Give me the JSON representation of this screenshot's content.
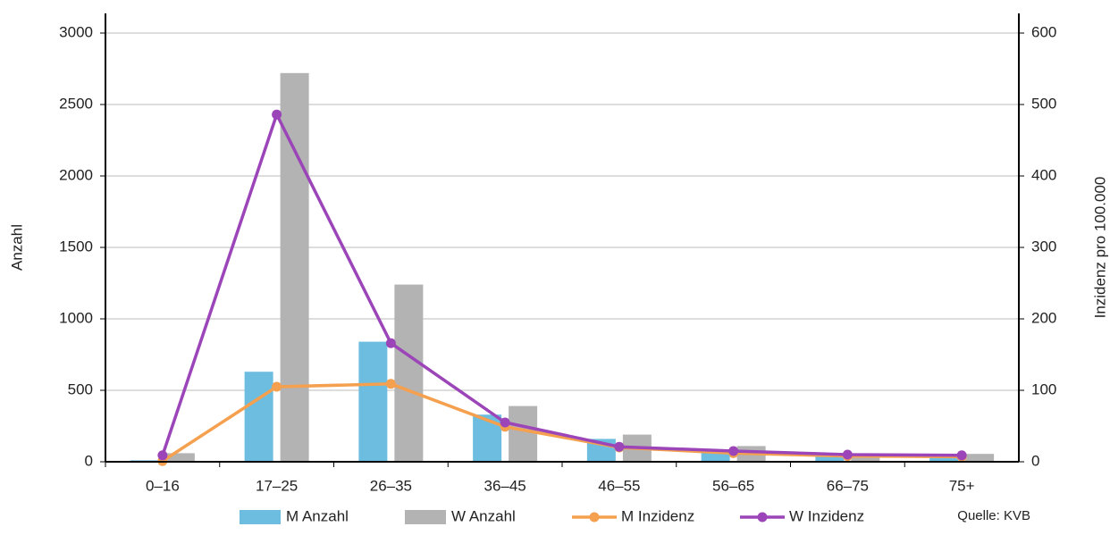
{
  "chart_data": {
    "type": "bar-line",
    "categories": [
      "0–16",
      "17–25",
      "26–35",
      "36–45",
      "46–55",
      "56–65",
      "66–75",
      "75+"
    ],
    "y_label": "Anzahl",
    "y2_label": "Inzidenz pro 100.000",
    "ylim": [
      0,
      3000
    ],
    "yticks": [
      0,
      500,
      1000,
      1500,
      2000,
      2500,
      3000
    ],
    "y2lim": [
      0,
      600
    ],
    "y2ticks": [
      0,
      100,
      200,
      300,
      400,
      500,
      600
    ],
    "grid": true,
    "series": [
      {
        "name": "M Anzahl",
        "type": "bar",
        "color": "#6dbde0",
        "values": [
          10,
          630,
          840,
          330,
          160,
          70,
          40,
          40
        ]
      },
      {
        "name": "W Anzahl",
        "type": "bar",
        "color": "#b3b3b3",
        "values": [
          60,
          2720,
          1240,
          390,
          190,
          110,
          50,
          55
        ]
      },
      {
        "name": "M Inzidenz",
        "type": "line",
        "axis": "y2",
        "color": "#f5a04f",
        "values": [
          1,
          105,
          109,
          49,
          20,
          12,
          8,
          7
        ]
      },
      {
        "name": "W Inzidenz",
        "type": "line",
        "axis": "y2",
        "color": "#9b45b8",
        "values": [
          9,
          486,
          166,
          55,
          21,
          15,
          10,
          9
        ]
      }
    ],
    "source": "Quelle: KVB"
  }
}
